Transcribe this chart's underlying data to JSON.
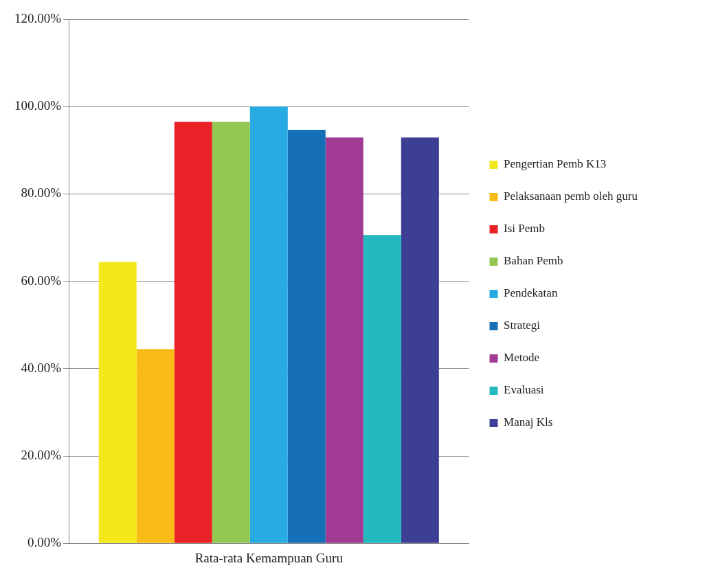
{
  "chart_data": {
    "type": "bar",
    "categories": [
      "Rata-rata Kemampuan Guru"
    ],
    "series": [
      {
        "name": "Pengertian Pemb K13",
        "color": "#f2e81c",
        "values": [
          64.4
        ]
      },
      {
        "name": "Pelaksanaan pemb oleh guru",
        "color": "#f9bb16",
        "values": [
          44.5
        ]
      },
      {
        "name": "Isi Pemb",
        "color": "#ea2127",
        "values": [
          96.5
        ]
      },
      {
        "name": "Bahan Pemb",
        "color": "#93c952",
        "values": [
          96.5
        ]
      },
      {
        "name": "Pendekatan",
        "color": "#27abe2",
        "values": [
          100
        ]
      },
      {
        "name": "Strategi",
        "color": "#1570b7",
        "values": [
          94.7
        ]
      },
      {
        "name": "Metode",
        "color": "#a13b93",
        "values": [
          92.9
        ]
      },
      {
        "name": "Evaluasi",
        "color": "#22b9bf",
        "values": [
          70.6
        ]
      },
      {
        "name": "Manaj Kls",
        "color": "#3c3f94",
        "values": [
          92.9
        ]
      }
    ],
    "ylim": [
      0,
      120
    ],
    "yticks": [
      {
        "value": 0,
        "label": "0.00%"
      },
      {
        "value": 20,
        "label": "20.00%"
      },
      {
        "value": 40,
        "label": "40.00%"
      },
      {
        "value": 60,
        "label": "60.00%"
      },
      {
        "value": 80,
        "label": "80.00%"
      },
      {
        "value": 100,
        "label": "100.00%"
      },
      {
        "value": 120,
        "label": "120.00%"
      }
    ],
    "grid": "y",
    "legend": "right"
  }
}
